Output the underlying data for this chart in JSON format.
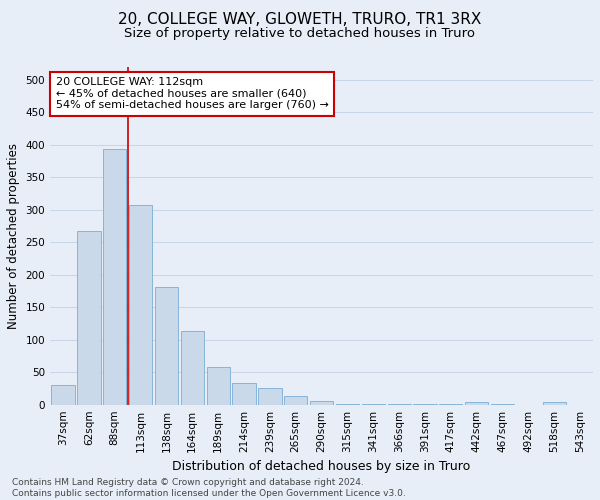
{
  "title": "20, COLLEGE WAY, GLOWETH, TRURO, TR1 3RX",
  "subtitle": "Size of property relative to detached houses in Truro",
  "xlabel": "Distribution of detached houses by size in Truro",
  "ylabel": "Number of detached properties",
  "categories": [
    "37sqm",
    "62sqm",
    "88sqm",
    "113sqm",
    "138sqm",
    "164sqm",
    "189sqm",
    "214sqm",
    "239sqm",
    "265sqm",
    "290sqm",
    "315sqm",
    "341sqm",
    "366sqm",
    "391sqm",
    "417sqm",
    "442sqm",
    "467sqm",
    "492sqm",
    "518sqm",
    "543sqm"
  ],
  "values": [
    30,
    267,
    393,
    308,
    181,
    114,
    58,
    33,
    25,
    14,
    6,
    1,
    1,
    1,
    1,
    1,
    4,
    1,
    0,
    4,
    0
  ],
  "bar_color": "#c9d9ea",
  "bar_edge_color": "#7aadd4",
  "grid_color": "#c8d4e8",
  "bg_color": "#e8eef8",
  "vline_color": "#cc0000",
  "annotation_text": "20 COLLEGE WAY: 112sqm\n← 45% of detached houses are smaller (640)\n54% of semi-detached houses are larger (760) →",
  "annotation_box_color": "#ffffff",
  "annotation_box_edge_color": "#cc0000",
  "ylim": [
    0,
    520
  ],
  "yticks": [
    0,
    50,
    100,
    150,
    200,
    250,
    300,
    350,
    400,
    450,
    500
  ],
  "footer_text": "Contains HM Land Registry data © Crown copyright and database right 2024.\nContains public sector information licensed under the Open Government Licence v3.0.",
  "title_fontsize": 11,
  "subtitle_fontsize": 9.5,
  "xlabel_fontsize": 9,
  "ylabel_fontsize": 8.5,
  "tick_fontsize": 7.5,
  "annotation_fontsize": 8,
  "footer_fontsize": 6.5
}
